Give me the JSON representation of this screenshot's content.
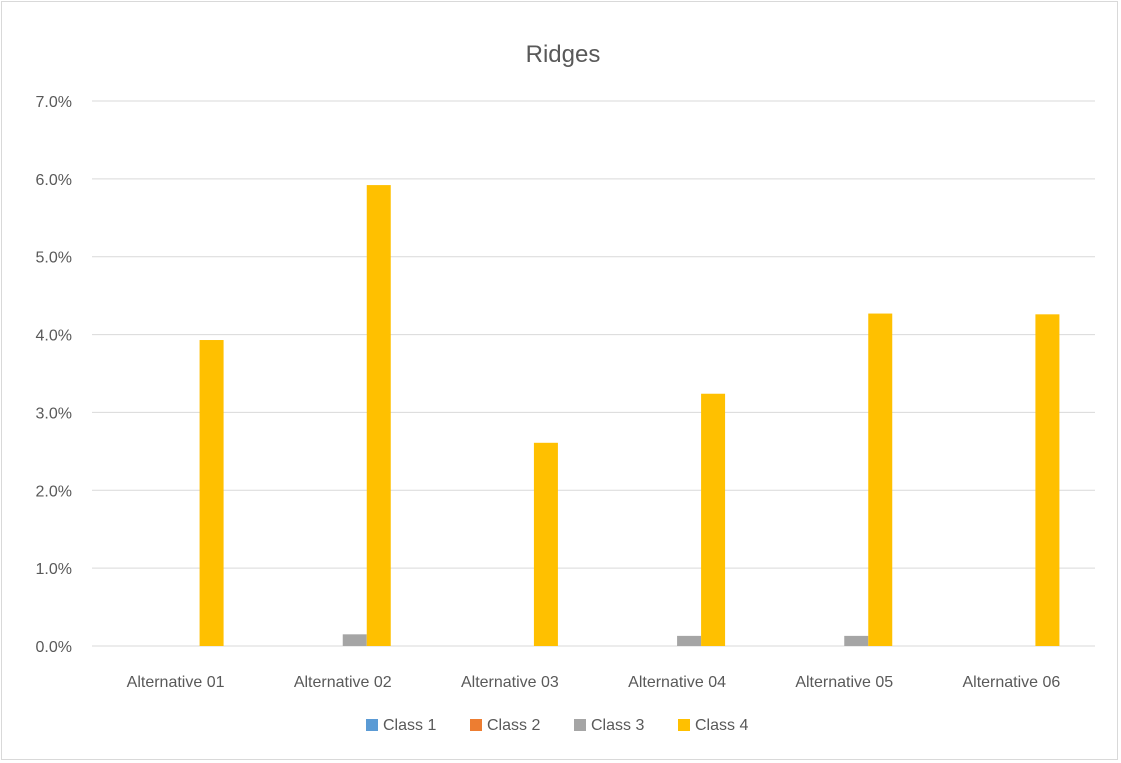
{
  "chart_data": {
    "type": "bar",
    "title": "Ridges",
    "xlabel": "",
    "ylabel": "",
    "categories": [
      "Alternative 01",
      "Alternative 02",
      "Alternative 03",
      "Alternative 04",
      "Alternative 05",
      "Alternative 06"
    ],
    "series": [
      {
        "name": "Class 1",
        "color": "#5b9bd5",
        "values": [
          0,
          0,
          0,
          0,
          0,
          0
        ]
      },
      {
        "name": "Class 2",
        "color": "#ed7d31",
        "values": [
          0,
          0,
          0,
          0,
          0,
          0
        ]
      },
      {
        "name": "Class 3",
        "color": "#a5a5a5",
        "values": [
          0.0,
          0.15,
          0.0,
          0.13,
          0.13,
          0.0
        ]
      },
      {
        "name": "Class 4",
        "color": "#ffc000",
        "values": [
          3.93,
          5.92,
          2.61,
          3.24,
          4.27,
          4.26
        ]
      }
    ],
    "ylim": [
      0,
      7
    ],
    "y_ticks": [
      "0.0%",
      "1.0%",
      "2.0%",
      "3.0%",
      "4.0%",
      "5.0%",
      "6.0%",
      "7.0%"
    ],
    "grid": true,
    "legend_position": "bottom"
  }
}
